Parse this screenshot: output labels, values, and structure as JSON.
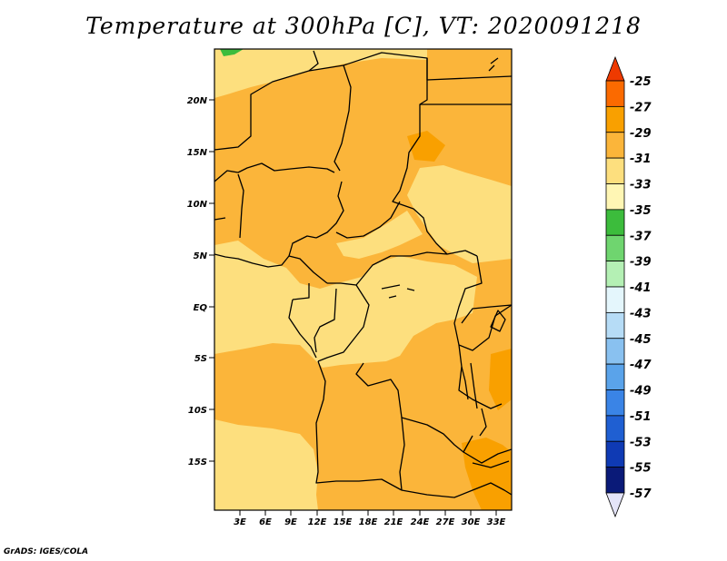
{
  "title": "Temperature at 300hPa [C], VT: 2020091218",
  "credit": "GrADS: IGES/COLA",
  "map": {
    "variable": "Temperature at 300hPa",
    "units": "C",
    "valid_time": "2020091218",
    "region": {
      "lon_range": [
        1,
        35
      ],
      "lat_range": [
        -20,
        25
      ]
    },
    "lat_ticks": [
      "20N",
      "15N",
      "10N",
      "5N",
      "EQ",
      "5S",
      "10S",
      "15S"
    ],
    "lon_ticks": [
      "3E",
      "6E",
      "9E",
      "12E",
      "15E",
      "18E",
      "21E",
      "24E",
      "27E",
      "30E",
      "33E"
    ]
  },
  "colorbar": {
    "labels": [
      "-25",
      "-27",
      "-29",
      "-31",
      "-33",
      "-35",
      "-37",
      "-39",
      "-41",
      "-43",
      "-45",
      "-47",
      "-49",
      "-51",
      "-53",
      "-55",
      "-57"
    ],
    "colors": [
      "#ee3a00",
      "#fb6a00",
      "#f9a000",
      "#fbb53a",
      "#fddf7e",
      "#fff6b4",
      "#3cbc3c",
      "#6fd56f",
      "#b4f0b4",
      "#e4f6fc",
      "#b6dcf6",
      "#89c1f0",
      "#5aa3ea",
      "#3a84e6",
      "#1f5fd2",
      "#0f3ab4",
      "#0a1a78",
      "#2a0a60"
    ],
    "top_arrow_color": "#ee3a00",
    "bottom_arrow_color": "#e4e4f8"
  },
  "field_colors": {
    "main": "#fbb53a",
    "light": "#fddf7e",
    "dark": "#f9a000",
    "green": "#3cbc3c"
  }
}
